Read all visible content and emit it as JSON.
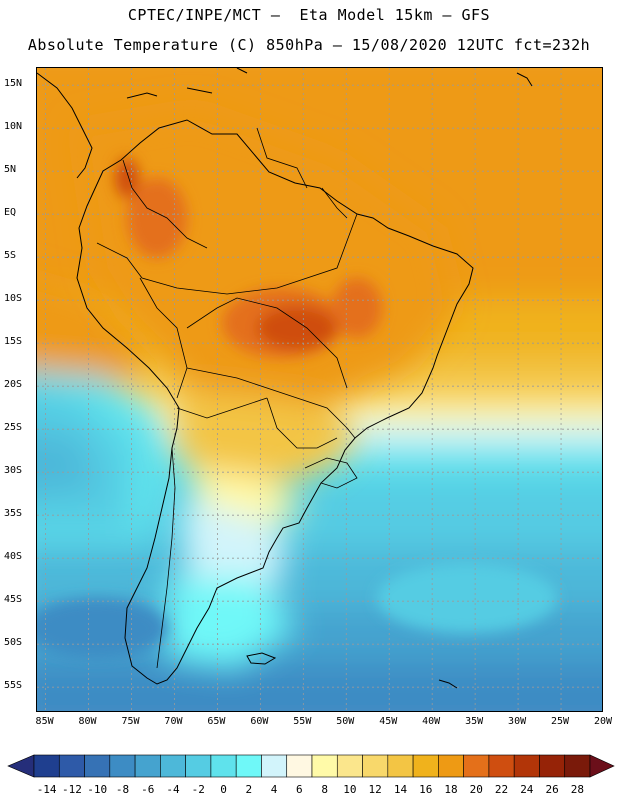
{
  "header": {
    "line1": "CPTEC/INPE/MCT –  Eta Model 15km – GFS",
    "line2": "Absolute Temperature (C) 850hPa – 15/08/2020 12UTC fct=232h"
  },
  "map": {
    "lat_labels": [
      "15N",
      "10N",
      "5N",
      "EQ",
      "5S",
      "10S",
      "15S",
      "20S",
      "25S",
      "30S",
      "35S",
      "40S",
      "45S",
      "50S",
      "55S"
    ],
    "lon_labels": [
      "85W",
      "80W",
      "75W",
      "70W",
      "65W",
      "60W",
      "55W",
      "50W",
      "45W",
      "40W",
      "35W",
      "30W",
      "25W",
      "20W"
    ],
    "lat_range": [
      17,
      -58
    ],
    "lon_range": [
      -86,
      -20
    ],
    "grid": true
  },
  "colorbar": {
    "labels": [
      "-14",
      "-12",
      "-10",
      "-8",
      "-6",
      "-4",
      "-2",
      "0",
      "2",
      "4",
      "6",
      "8",
      "10",
      "12",
      "14",
      "16",
      "18",
      "20",
      "22",
      "24",
      "26",
      "28"
    ],
    "colors": [
      "#1f3f8f",
      "#2e5aa8",
      "#3672b5",
      "#3d8cc4",
      "#45a3cf",
      "#4db8d9",
      "#55cce3",
      "#5fe2ec",
      "#6ff8f8",
      "#d2f4fb",
      "#fff8e2",
      "#fffaa8",
      "#fbe68c",
      "#f8d86b",
      "#f3c544",
      "#f0b21c",
      "#ee9a14",
      "#e4701a",
      "#cf4e10",
      "#b23508",
      "#962307",
      "#7a1a0a"
    ],
    "under_color": "#252e7a",
    "over_color": "#6b0f1a"
  }
}
